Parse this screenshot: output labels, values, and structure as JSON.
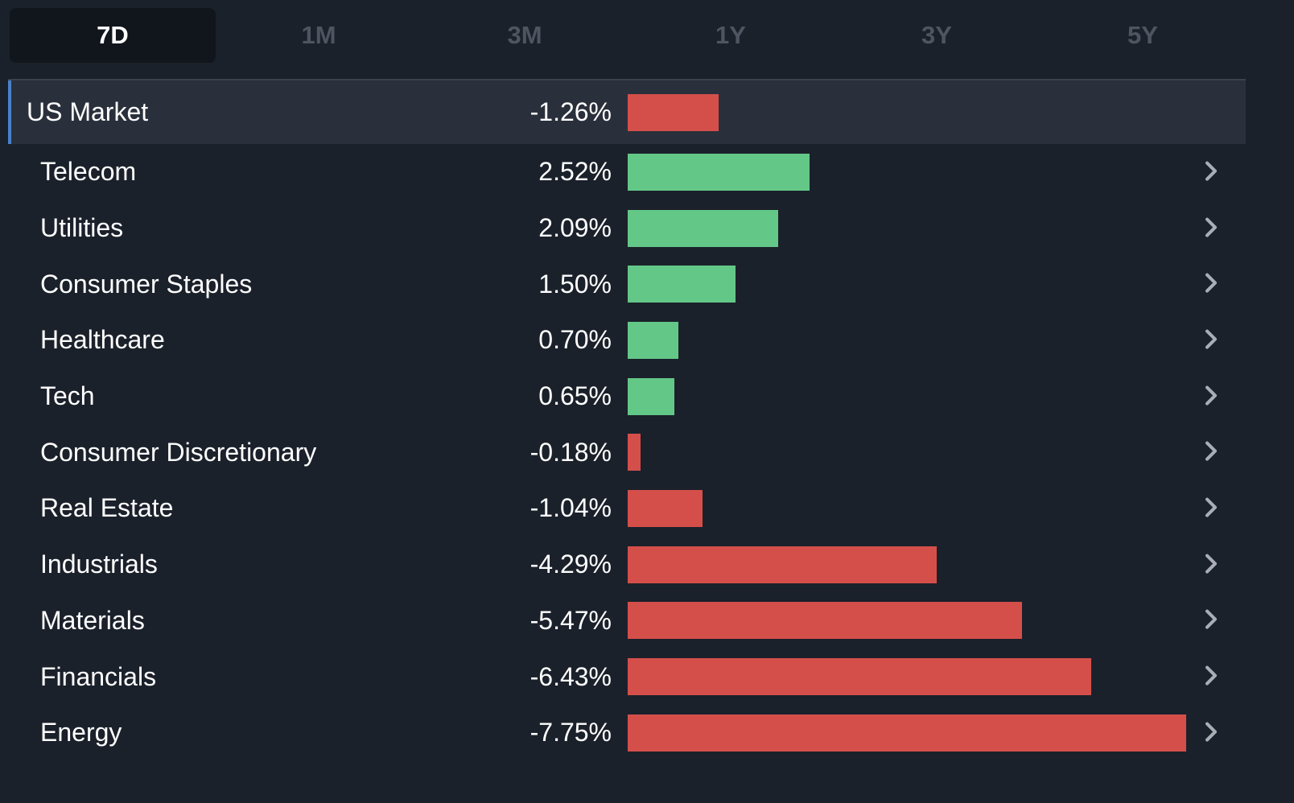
{
  "tabs": [
    {
      "label": "7D",
      "active": true
    },
    {
      "label": "1M",
      "active": false
    },
    {
      "label": "3M",
      "active": false
    },
    {
      "label": "1Y",
      "active": false
    },
    {
      "label": "3Y",
      "active": false
    },
    {
      "label": "5Y",
      "active": false
    }
  ],
  "colors": {
    "positive": "#63c887",
    "negative": "#d54f4a",
    "chevron": "#a9aeb6",
    "highlight_border": "#4a80c8"
  },
  "market": {
    "label": "US Market",
    "value_text": "-1.26%",
    "value": -1.26
  },
  "sectors": [
    {
      "label": "Telecom",
      "value_text": "2.52%",
      "value": 2.52
    },
    {
      "label": "Utilities",
      "value_text": "2.09%",
      "value": 2.09
    },
    {
      "label": "Consumer Staples",
      "value_text": "1.50%",
      "value": 1.5
    },
    {
      "label": "Healthcare",
      "value_text": "0.70%",
      "value": 0.7
    },
    {
      "label": "Tech",
      "value_text": "0.65%",
      "value": 0.65
    },
    {
      "label": "Consumer Discretionary",
      "value_text": "-0.18%",
      "value": -0.18
    },
    {
      "label": "Real Estate",
      "value_text": "-1.04%",
      "value": -1.04
    },
    {
      "label": "Industrials",
      "value_text": "-4.29%",
      "value": -4.29
    },
    {
      "label": "Materials",
      "value_text": "-5.47%",
      "value": -5.47
    },
    {
      "label": "Financials",
      "value_text": "-6.43%",
      "value": -6.43
    },
    {
      "label": "Energy",
      "value_text": "-7.75%",
      "value": -7.75
    }
  ],
  "row_action_icon": "chevron-right-icon"
}
